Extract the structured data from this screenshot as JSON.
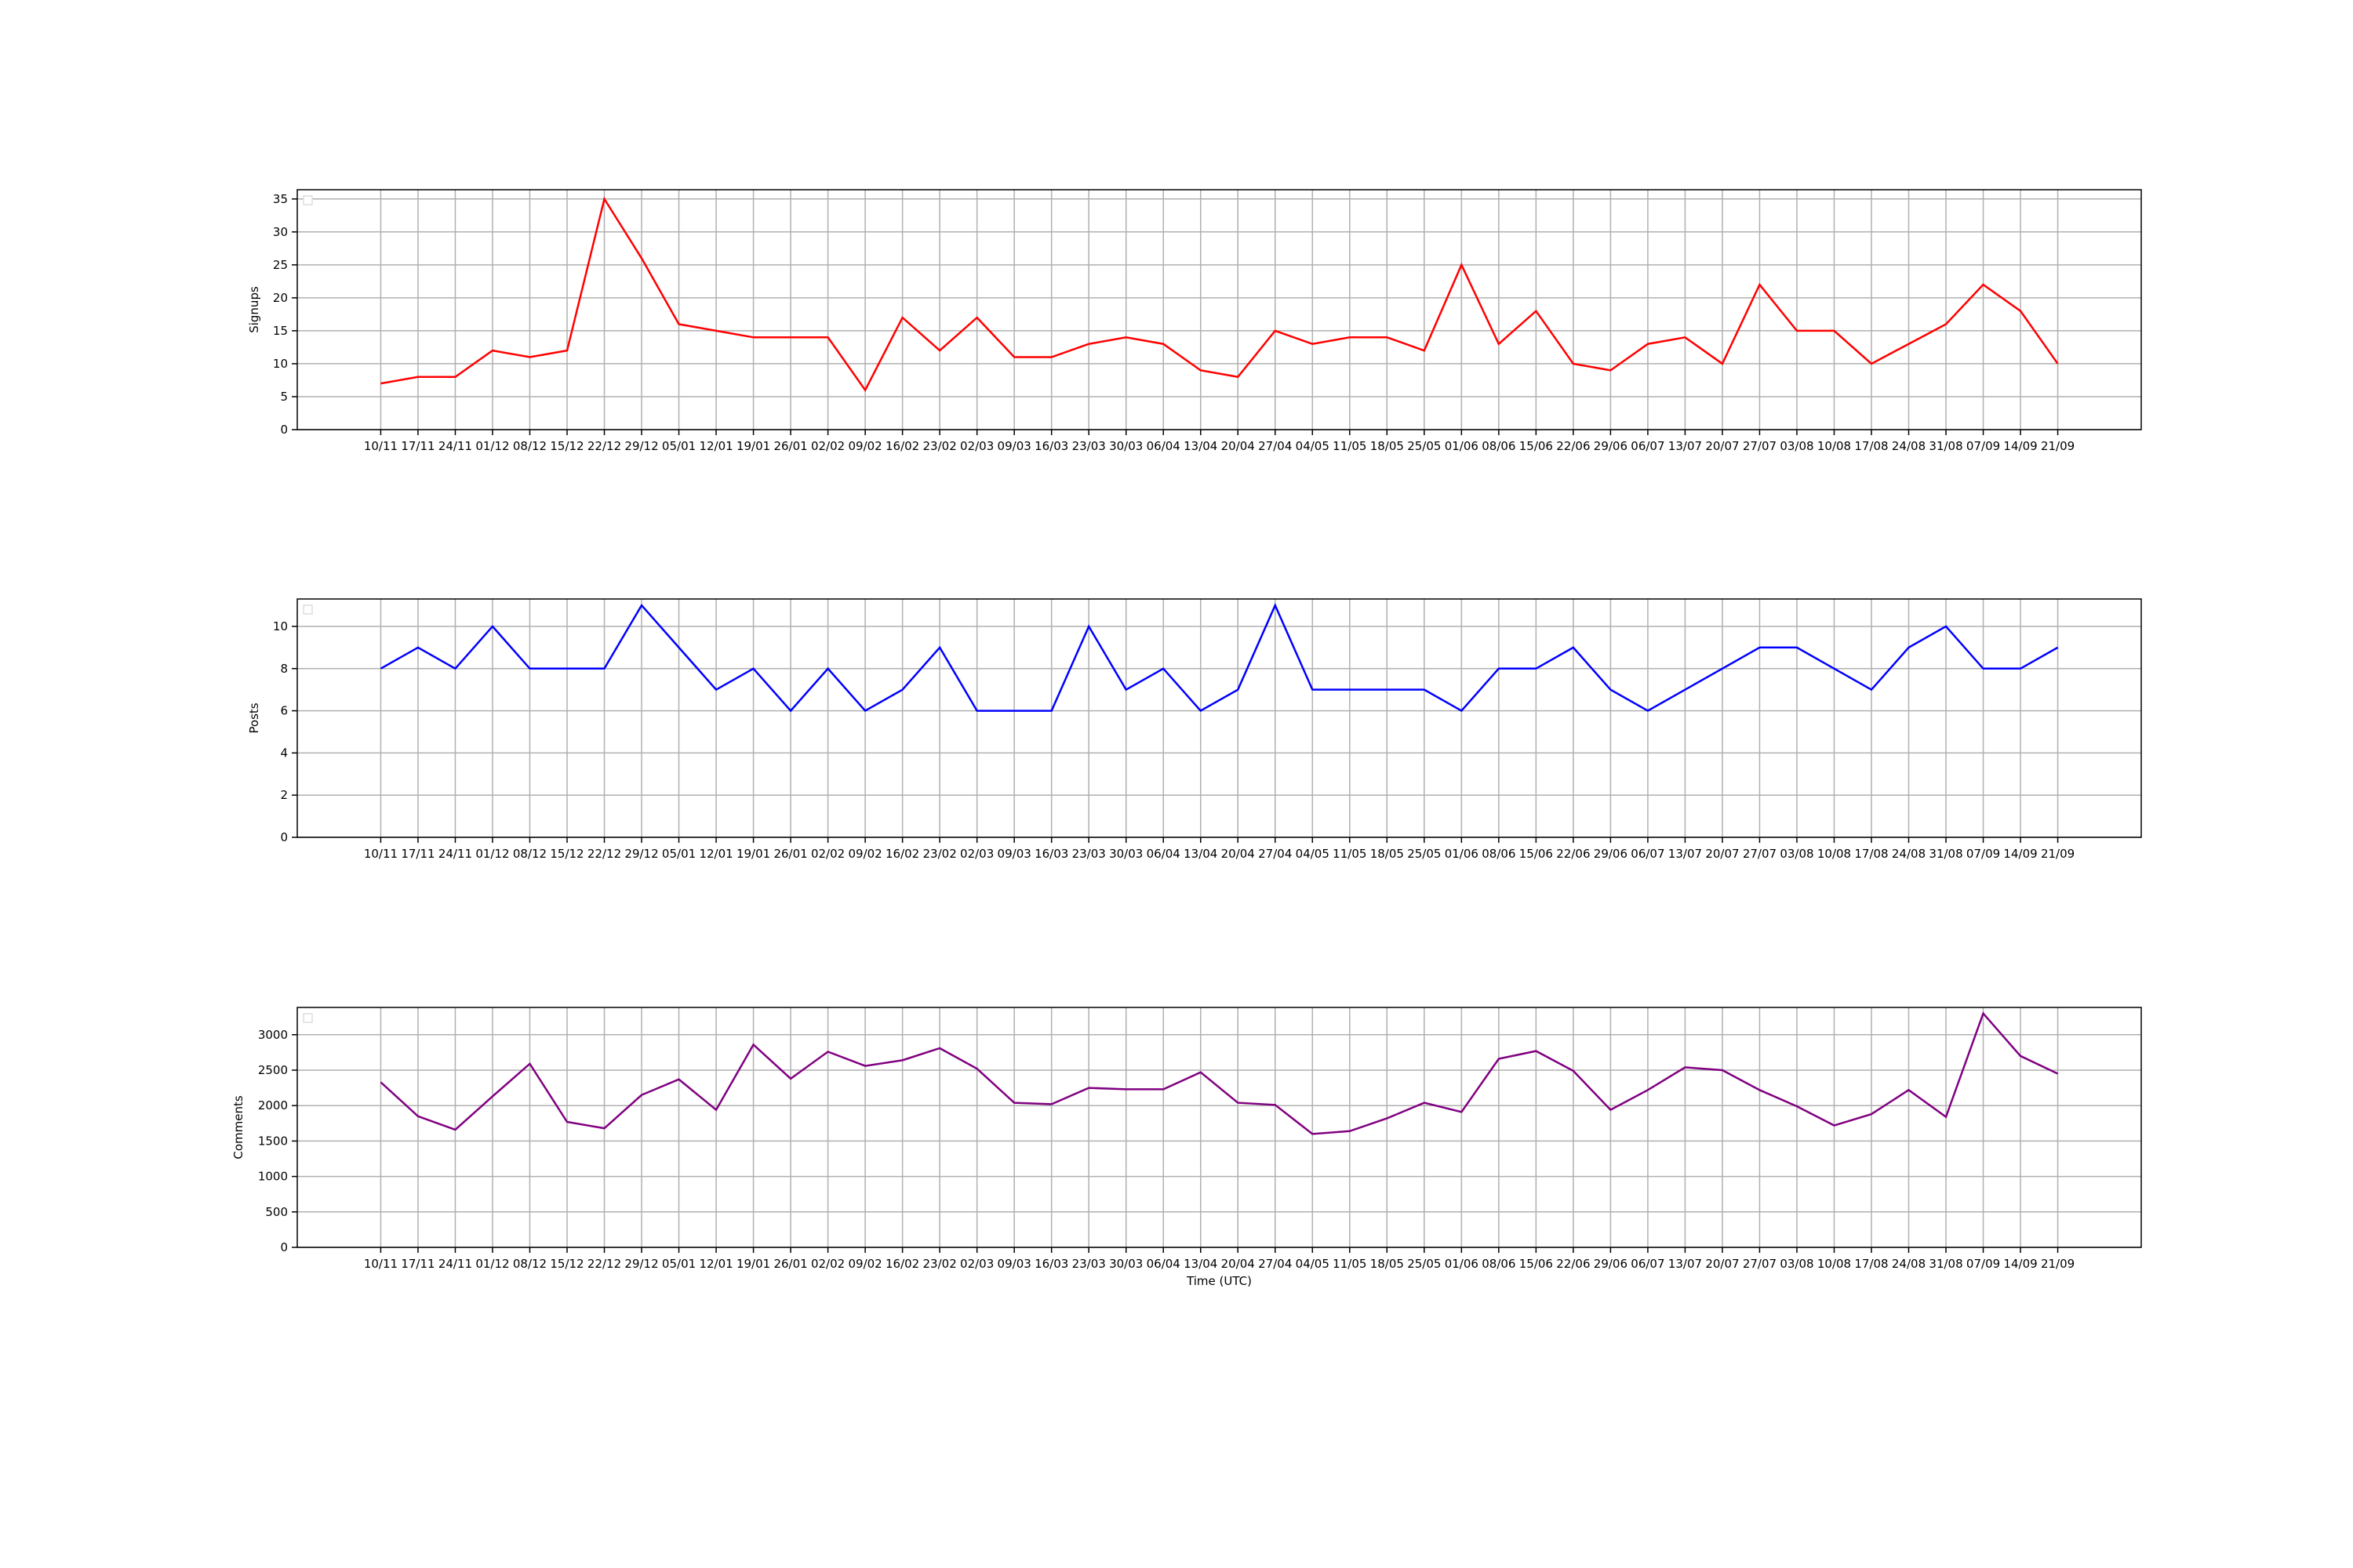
{
  "chart_data": [
    {
      "type": "line",
      "ylabel": "Signups",
      "categories": [
        "10/11",
        "17/11",
        "24/11",
        "01/12",
        "08/12",
        "15/12",
        "22/12",
        "29/12",
        "05/01",
        "12/01",
        "19/01",
        "26/01",
        "02/02",
        "09/02",
        "16/02",
        "23/02",
        "02/03",
        "09/03",
        "16/03",
        "23/03",
        "30/03",
        "06/04",
        "13/04",
        "20/04",
        "27/04",
        "04/05",
        "11/05",
        "18/05",
        "25/05",
        "01/06",
        "08/06",
        "15/06",
        "22/06",
        "29/06",
        "06/07",
        "13/07",
        "20/07",
        "27/07",
        "03/08",
        "10/08",
        "17/08",
        "24/08",
        "31/08",
        "07/09",
        "14/09",
        "21/09"
      ],
      "series": [
        {
          "color": "#ff0000",
          "values": [
            7,
            8,
            8,
            12,
            11,
            12,
            35,
            26,
            16,
            15,
            14,
            14,
            14,
            6,
            17,
            12,
            17,
            11,
            11,
            13,
            14,
            13,
            9,
            8,
            15,
            13,
            14,
            14,
            12,
            25,
            13,
            18,
            10,
            9,
            13,
            14,
            10,
            22,
            15,
            15,
            10,
            13,
            16,
            22,
            18,
            10
          ]
        }
      ],
      "ylim": [
        0,
        36.4
      ],
      "yticks": [
        0,
        5,
        10,
        15,
        20,
        25,
        30,
        35
      ],
      "grid": true
    },
    {
      "type": "line",
      "ylabel": "Posts",
      "categories": [
        "10/11",
        "17/11",
        "24/11",
        "01/12",
        "08/12",
        "15/12",
        "22/12",
        "29/12",
        "05/01",
        "12/01",
        "19/01",
        "26/01",
        "02/02",
        "09/02",
        "16/02",
        "23/02",
        "02/03",
        "09/03",
        "16/03",
        "23/03",
        "30/03",
        "06/04",
        "13/04",
        "20/04",
        "27/04",
        "04/05",
        "11/05",
        "18/05",
        "25/05",
        "01/06",
        "08/06",
        "15/06",
        "22/06",
        "29/06",
        "06/07",
        "13/07",
        "20/07",
        "27/07",
        "03/08",
        "10/08",
        "17/08",
        "24/08",
        "31/08",
        "07/09",
        "14/09",
        "21/09"
      ],
      "series": [
        {
          "color": "#0000ff",
          "values": [
            8,
            9,
            8,
            10,
            8,
            8,
            8,
            11,
            9,
            7,
            8,
            6,
            8,
            6,
            7,
            9,
            6,
            6,
            6,
            10,
            7,
            8,
            6,
            7,
            11,
            7,
            7,
            7,
            7,
            6,
            8,
            8,
            9,
            7,
            6,
            7,
            8,
            9,
            9,
            8,
            7,
            9,
            10,
            8,
            8,
            9
          ]
        }
      ],
      "ylim": [
        0,
        11.3
      ],
      "yticks": [
        0,
        2,
        4,
        6,
        8,
        10
      ],
      "grid": true
    },
    {
      "type": "line",
      "ylabel": "Comments",
      "xlabel": "Time (UTC)",
      "categories": [
        "10/11",
        "17/11",
        "24/11",
        "01/12",
        "08/12",
        "15/12",
        "22/12",
        "29/12",
        "05/01",
        "12/01",
        "19/01",
        "26/01",
        "02/02",
        "09/02",
        "16/02",
        "23/02",
        "02/03",
        "09/03",
        "16/03",
        "23/03",
        "30/03",
        "06/04",
        "13/04",
        "20/04",
        "27/04",
        "04/05",
        "11/05",
        "18/05",
        "25/05",
        "01/06",
        "08/06",
        "15/06",
        "22/06",
        "29/06",
        "06/07",
        "13/07",
        "20/07",
        "27/07",
        "03/08",
        "10/08",
        "17/08",
        "24/08",
        "31/08",
        "07/09",
        "14/09",
        "21/09"
      ],
      "series": [
        {
          "color": "#800080",
          "values": [
            2330,
            1850,
            1660,
            2130,
            2590,
            1770,
            1680,
            2150,
            2370,
            1940,
            2860,
            2380,
            2760,
            2560,
            2640,
            2810,
            2520,
            2040,
            2020,
            2250,
            2230,
            2230,
            2470,
            2040,
            2010,
            1600,
            1640,
            1820,
            2040,
            1910,
            2660,
            2770,
            2490,
            1940,
            2220,
            2540,
            2500,
            2220,
            1990,
            1720,
            1880,
            2220,
            1840,
            3300,
            2700,
            2450
          ]
        }
      ],
      "ylim": [
        0,
        3385
      ],
      "yticks": [
        0,
        500,
        1000,
        1500,
        2000,
        2500,
        3000
      ],
      "grid": true
    }
  ]
}
